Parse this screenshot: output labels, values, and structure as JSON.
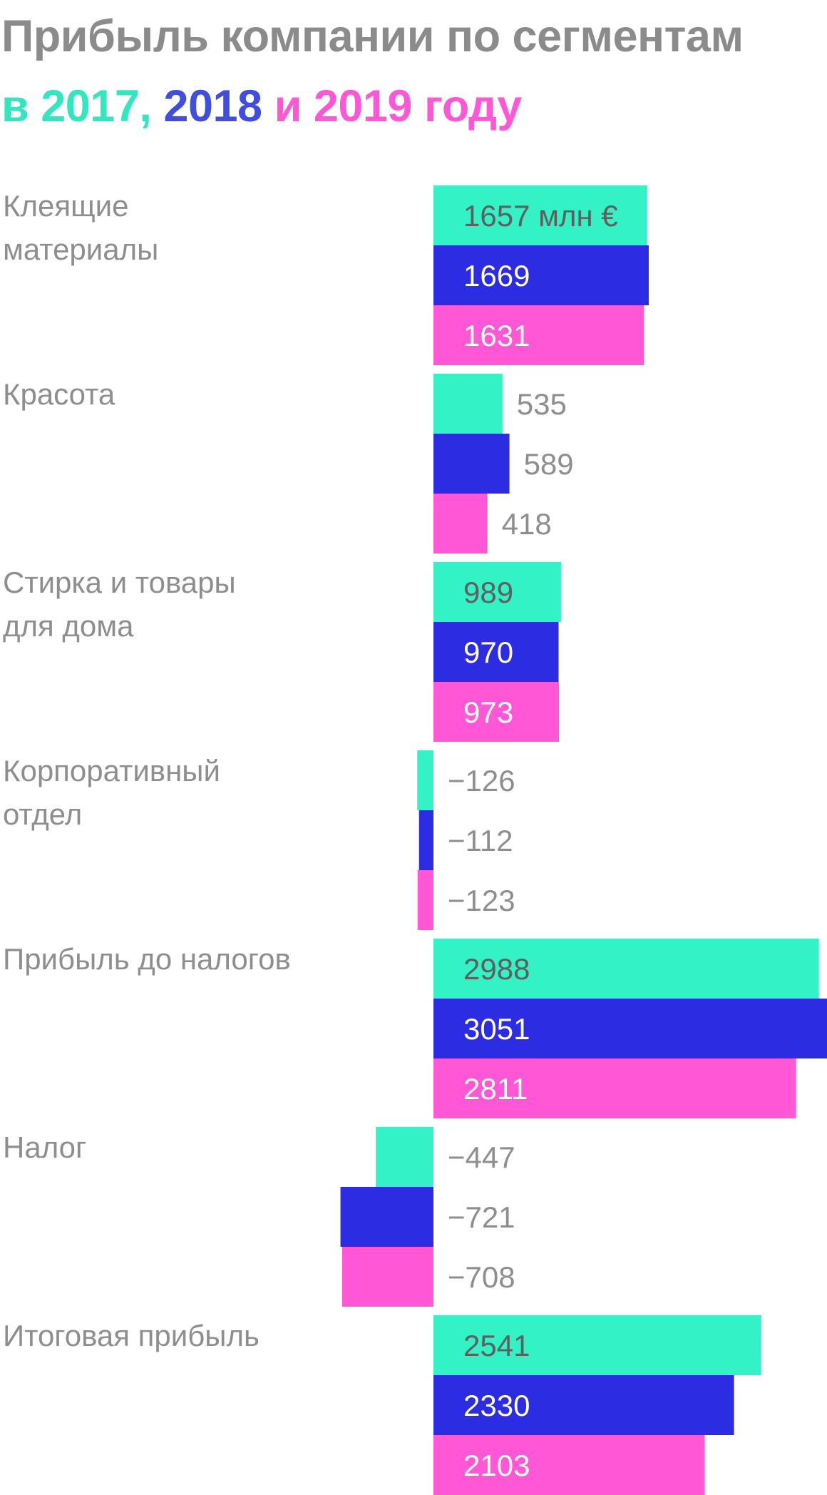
{
  "title": {
    "line1": "Прибыль компании по сегментам",
    "line2_parts": [
      {
        "text": "в ",
        "color": "#2fe8c0"
      },
      {
        "text": "2017, ",
        "color": "#2fe8c0"
      },
      {
        "text": "2018",
        "color": "#3f4de0"
      },
      {
        "text": " и ",
        "color": "#ff57d5"
      },
      {
        "text": "2019",
        "color": "#ff57d5"
      },
      {
        "text": " году",
        "color": "#ff57d5"
      }
    ]
  },
  "chart_data": {
    "type": "bar",
    "orientation": "horizontal",
    "unit_label": "млн €",
    "categories": [
      [
        "Клеящие",
        "материалы"
      ],
      [
        "Красота"
      ],
      [
        "Стирка и товары",
        "для дома"
      ],
      [
        "Корпоративный",
        "отдел"
      ],
      [
        "Прибыль до налогов"
      ],
      [
        "Налог"
      ],
      [
        "Итоговая прибыль"
      ]
    ],
    "series": [
      {
        "name": "2017",
        "color": "#33f2c6",
        "values": [
          1657,
          535,
          989,
          -126,
          2988,
          -447,
          2541
        ]
      },
      {
        "name": "2018",
        "color": "#2c2ce3",
        "values": [
          1669,
          589,
          970,
          -112,
          3051,
          -721,
          2330
        ]
      },
      {
        "name": "2019",
        "color": "#ff57d5",
        "values": [
          1631,
          418,
          973,
          -123,
          2811,
          -708,
          2103
        ]
      }
    ],
    "value_labels": [
      [
        "1657 млн €",
        "1669",
        "1631"
      ],
      [
        "535",
        "589",
        "418"
      ],
      [
        "989",
        "970",
        "973"
      ],
      [
        "−126",
        "−112",
        "−123"
      ],
      [
        "2988",
        "3051",
        "2811"
      ],
      [
        "−447",
        "−721",
        "−708"
      ],
      [
        "2541",
        "2330",
        "2103"
      ]
    ],
    "colors": {
      "label_gray": "#8e8e8e",
      "on_light": "#5f5f5f",
      "on_dark": "#ffffff"
    }
  }
}
